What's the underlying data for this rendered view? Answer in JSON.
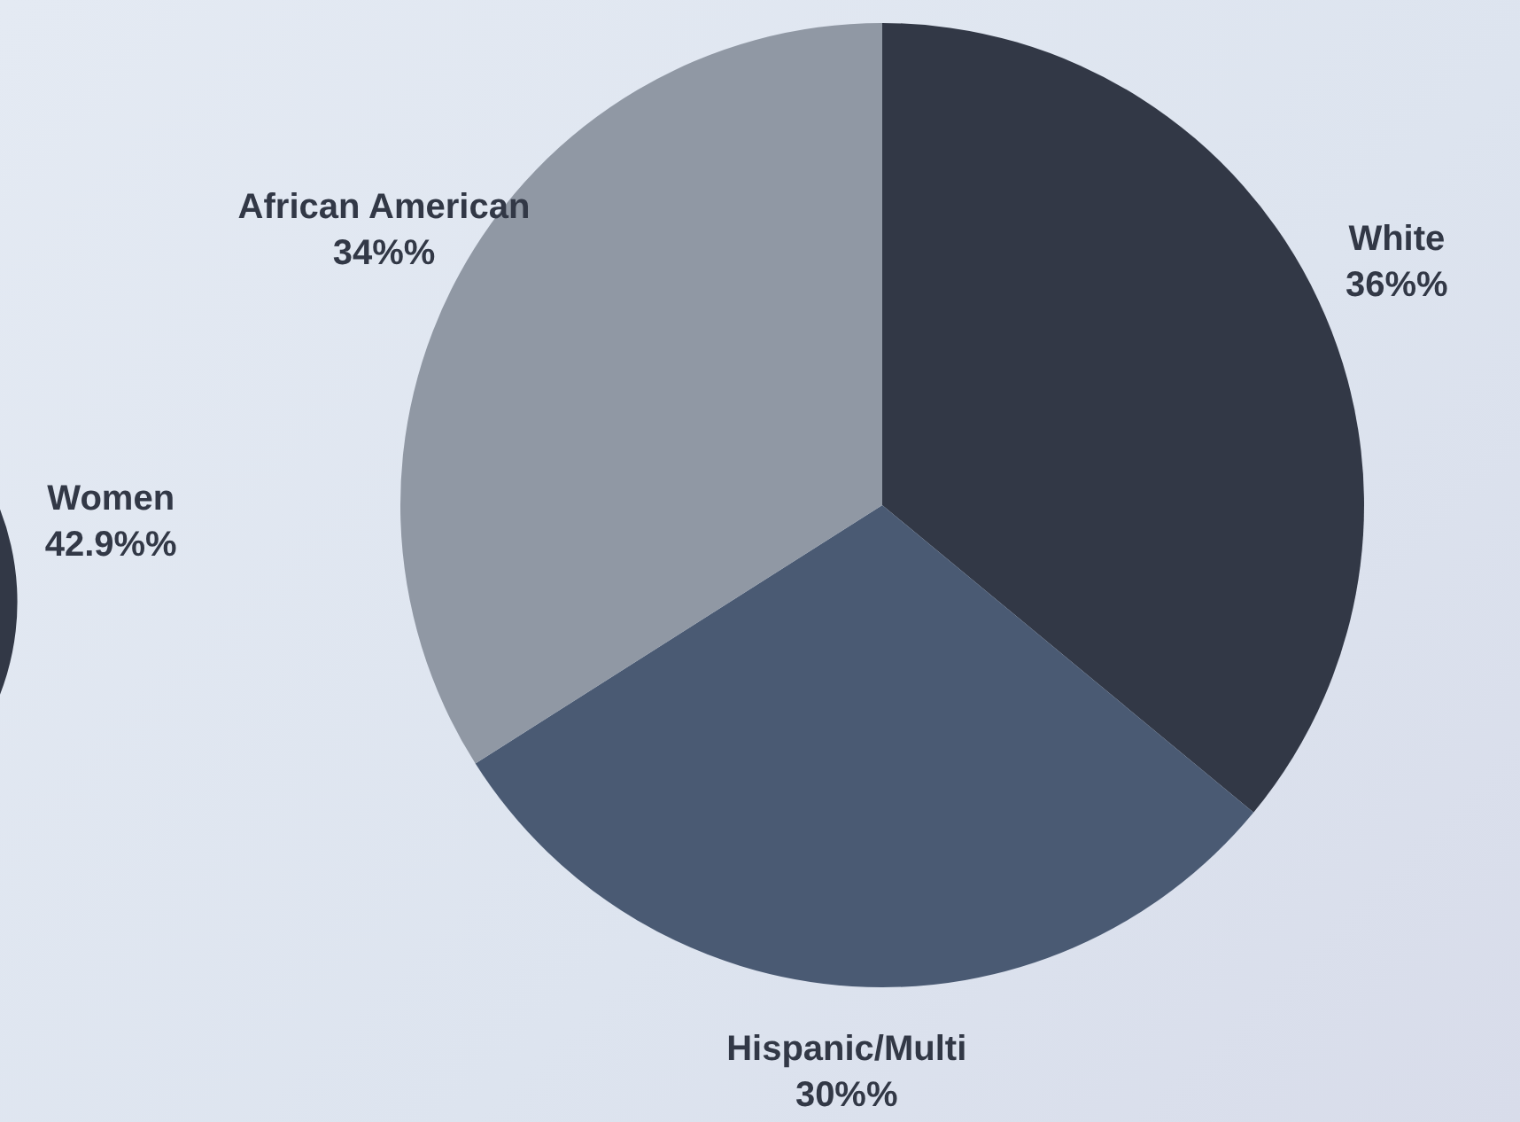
{
  "chart_data": [
    {
      "type": "pie",
      "categories": [
        "Women"
      ],
      "values": [
        42.9
      ],
      "colors": [
        "#323846"
      ],
      "value_labels": [
        "42.9%%"
      ],
      "legend": false
    },
    {
      "type": "pie",
      "categories": [
        "White",
        "Hispanic/Multi",
        "African American"
      ],
      "values": [
        36,
        30,
        34
      ],
      "colors": [
        "#323846",
        "#4a5a73",
        "#9098a4"
      ],
      "value_labels": [
        "36%%",
        "30%%",
        "34%%"
      ],
      "legend": false
    }
  ]
}
